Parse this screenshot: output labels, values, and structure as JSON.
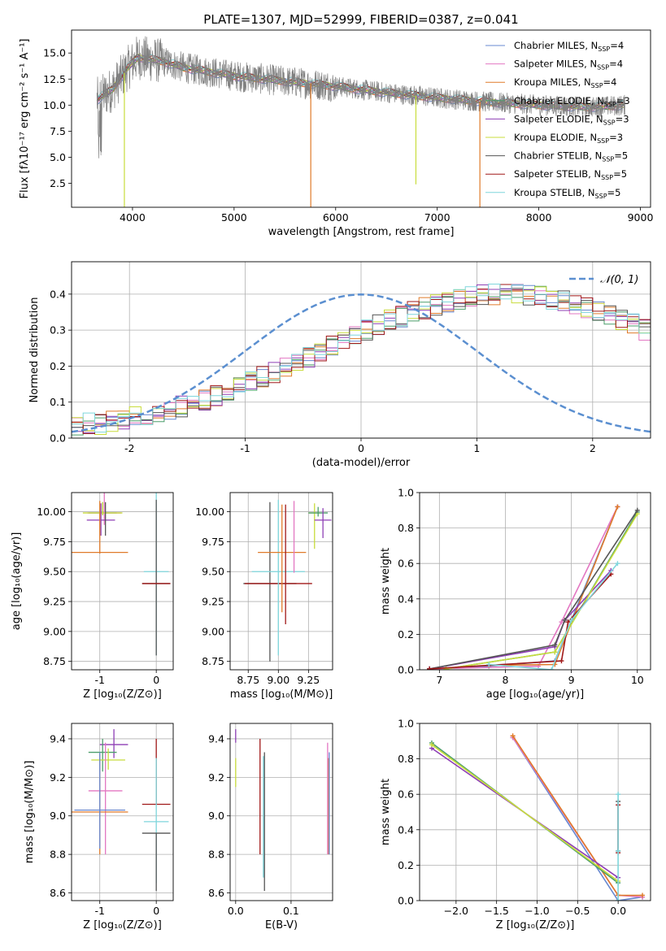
{
  "chart_data": [
    {
      "id": "spectrum",
      "type": "line",
      "title": "PLATE=1307, MJD=52999, FIBERID=0387, z=0.041",
      "xlabel": "wavelength [Angstrom, rest frame]",
      "ylabel": "Flux [fλ10⁻¹⁷ erg cm⁻² s⁻¹ A⁻¹]",
      "xlim": [
        3400,
        9100
      ],
      "ylim": [
        0.2,
        17.2
      ],
      "xticks": [
        4000,
        5000,
        6000,
        7000,
        8000,
        9000
      ],
      "yticks": [
        2.5,
        5.0,
        7.5,
        10.0,
        12.5,
        15.0
      ],
      "ytick_labels": [
        "2.5",
        "5.0",
        "7.5",
        "10.0",
        "12.5",
        "15.0"
      ],
      "legend_position": "top-right",
      "data_trace": {
        "color": "#808080",
        "wavelength_range": [
          3650,
          8850
        ]
      },
      "continuum": {
        "x": [
          3650,
          3800,
          3950,
          4050,
          4300,
          4500,
          5000,
          5500,
          6000,
          6500,
          7000,
          7500,
          8000,
          8500,
          8850
        ],
        "y": [
          10.5,
          11.5,
          13.5,
          14.6,
          14.2,
          13.6,
          12.8,
          12.3,
          11.8,
          11.2,
          10.7,
          10.3,
          10.0,
          9.8,
          10.0
        ]
      },
      "series": [
        {
          "name": "Chabrier MILES, N",
          "sub": "SSP",
          "suffix": "=4",
          "color": "#6788d0"
        },
        {
          "name": "Salpeter MILES, N",
          "sub": "SSP",
          "suffix": "=4",
          "color": "#e377c2"
        },
        {
          "name": "Kroupa MILES, N",
          "sub": "SSP",
          "suffix": "=4",
          "color": "#e07b2a"
        },
        {
          "name": "Chabrier ELODIE, N",
          "sub": "SSP",
          "suffix": "=3",
          "color": "#4c9e6b"
        },
        {
          "name": "Salpeter ELODIE, N",
          "sub": "SSP",
          "suffix": "=3",
          "color": "#8e3fb5"
        },
        {
          "name": "Kroupa ELODIE, N",
          "sub": "SSP",
          "suffix": "=3",
          "color": "#c8dc3c"
        },
        {
          "name": "Chabrier STELIB, N",
          "sub": "SSP",
          "suffix": "=5",
          "color": "#555555"
        },
        {
          "name": "Salpeter STELIB, N",
          "sub": "SSP",
          "suffix": "=5",
          "color": "#a01818"
        },
        {
          "name": "Kroupa STELIB, N",
          "sub": "SSP",
          "suffix": "=5",
          "color": "#7fd6dc"
        }
      ],
      "dips": [
        {
          "x": 3920,
          "color": "#c8dc3c",
          "to": 0.2
        },
        {
          "x": 5755,
          "color": "#e07b2a",
          "to": 0.2
        },
        {
          "x": 6790,
          "color": "#c8dc3c",
          "to": 2.4
        },
        {
          "x": 7420,
          "color": "#e07b2a",
          "to": 0.2
        }
      ]
    },
    {
      "id": "residuals",
      "type": "histogram",
      "xlabel": "(data-model)/error",
      "ylabel": "Normed distribution",
      "xlim": [
        -2.5,
        2.5
      ],
      "ylim": [
        0,
        0.49
      ],
      "xticks": [
        -2,
        -1,
        0,
        1,
        2
      ],
      "yticks": [
        0.0,
        0.1,
        0.2,
        0.3,
        0.4
      ],
      "ytick_labels": [
        "0.0",
        "0.1",
        "0.2",
        "0.3",
        "0.4"
      ],
      "grid": true,
      "legend": {
        "label": "𝒩(0, 1)",
        "position": "top-right",
        "color": "#5b8fd0"
      },
      "bin_width": 0.1,
      "bin_start": -2.5,
      "base_heights": [
        0.038,
        0.04,
        0.04,
        0.045,
        0.052,
        0.058,
        0.063,
        0.07,
        0.078,
        0.087,
        0.097,
        0.107,
        0.118,
        0.13,
        0.143,
        0.156,
        0.17,
        0.184,
        0.198,
        0.212,
        0.227,
        0.242,
        0.256,
        0.271,
        0.286,
        0.3,
        0.313,
        0.326,
        0.338,
        0.35,
        0.361,
        0.371,
        0.379,
        0.386,
        0.392,
        0.396,
        0.399,
        0.399,
        0.399,
        0.397,
        0.393,
        0.388,
        0.381,
        0.373,
        0.363,
        0.352,
        0.34,
        0.328,
        0.315,
        0.301,
        0.287,
        0.272,
        0.258,
        0.243,
        0.228,
        0.213,
        0.199,
        0.185,
        0.171,
        0.157,
        0.144,
        0.131,
        0.119,
        0.108,
        0.098,
        0.088,
        0.079,
        0.07,
        0.063,
        0.056,
        0.05,
        0.044,
        0.039,
        0.034,
        0.03,
        0.027,
        0.024,
        0.022,
        0.021,
        0.02
      ]
    },
    {
      "id": "age-z",
      "type": "errorbar",
      "xlabel": "Z [log₁₀(Z/Z⊙)]",
      "ylabel": "age  [log₁₀(age/yr)]",
      "xlim": [
        -1.5,
        0.3
      ],
      "ylim": [
        8.68,
        10.16
      ],
      "xticks": [
        -1,
        0
      ],
      "yticks": [
        8.75,
        9.0,
        9.25,
        9.5,
        9.75,
        10.0
      ],
      "ytick_labels": [
        "8.75",
        "9.00",
        "9.25",
        "9.50",
        "9.75",
        "10.00"
      ],
      "points": [
        {
          "x": -0.95,
          "xerr": 0.25,
          "y": 9.99,
          "yerr": [
            0.02,
            0.09
          ],
          "color": "#4c9e6b"
        },
        {
          "x": -0.92,
          "xerr": 0.3,
          "y": 9.99,
          "yerr": [
            0.1,
            0.55
          ],
          "color": "#e377c2"
        },
        {
          "x": -0.95,
          "xerr": 0.35,
          "y": 9.99,
          "yerr": [
            0.02,
            0.09
          ],
          "color": "#c8dc3c"
        },
        {
          "x": -0.98,
          "xerr": 0.25,
          "y": 9.93,
          "yerr": [
            0.13,
            0.14
          ],
          "color": "#8e3fb5"
        },
        {
          "x": -1.0,
          "xerr": 0.5,
          "y": 9.66,
          "yerr": [
            0.01,
            0.43
          ],
          "color": "#e07b2a"
        },
        {
          "x": 0.0,
          "xerr": 0.22,
          "y": 9.5,
          "yerr": [
            0.7,
            0.68
          ],
          "color": "#7fd6dc"
        },
        {
          "x": 0.0,
          "xerr": 0.25,
          "y": 9.4,
          "yerr": [
            0.6,
            0.7
          ],
          "color": "#555555"
        },
        {
          "x": 0.0,
          "xerr": 0.25,
          "y": 9.4,
          "yerr": [
            0.0,
            0.0
          ],
          "color": "#a01818"
        },
        {
          "x": -0.9,
          "xerr": 0.0,
          "y": 10.0,
          "yerr": [
            0.2,
            0.08
          ],
          "color": "#555555"
        }
      ]
    },
    {
      "id": "age-mass",
      "type": "errorbar",
      "xlabel": "mass [log₁₀(M/M⊙)]",
      "xlim": [
        8.6,
        9.45
      ],
      "ylim": [
        8.68,
        10.16
      ],
      "xticks": [
        8.75,
        9.0,
        9.25
      ],
      "xtick_labels": [
        "8.75",
        "9.00",
        "9.25"
      ],
      "yticks": [
        8.75,
        9.0,
        9.25,
        9.5,
        9.75,
        10.0
      ],
      "ytick_labels": [
        "8.75",
        "9.00",
        "9.25",
        "9.50",
        "9.75",
        "10.00"
      ],
      "points": [
        {
          "x": 8.93,
          "xerr": 0.22,
          "y": 9.4,
          "yerr": [
            0.65,
            0.68
          ],
          "color": "#555555"
        },
        {
          "x": 9.0,
          "xerr": 0.28,
          "y": 9.4,
          "yerr": [
            0.0,
            0.0
          ],
          "color": "#a01818"
        },
        {
          "x": 9.0,
          "xerr": 0.22,
          "y": 9.5,
          "yerr": [
            0.7,
            0.6
          ],
          "color": "#7fd6dc"
        },
        {
          "x": 9.03,
          "xerr": 0.2,
          "y": 9.66,
          "yerr": [
            0.5,
            0.4
          ],
          "color": "#e07b2a"
        },
        {
          "x": 9.06,
          "xerr": 0.0,
          "y": 9.66,
          "yerr": [
            0.6,
            0.4
          ],
          "color": "#a01818"
        },
        {
          "x": 9.13,
          "xerr": 0.0,
          "y": 9.99,
          "yerr": [
            0.5,
            0.1
          ],
          "color": "#e377c2"
        },
        {
          "x": 9.3,
          "xerr": 0.05,
          "y": 9.99,
          "yerr": [
            0.3,
            0.08
          ],
          "color": "#c8dc3c"
        },
        {
          "x": 9.33,
          "xerr": 0.08,
          "y": 9.99,
          "yerr": [
            0.03,
            0.05
          ],
          "color": "#4c9e6b"
        },
        {
          "x": 9.37,
          "xerr": 0.07,
          "y": 9.93,
          "yerr": [
            0.15,
            0.1
          ],
          "color": "#8e3fb5"
        }
      ]
    },
    {
      "id": "weight-age",
      "type": "line",
      "xlabel": "age  [log₁₀(age/yr)]",
      "ylabel": "mass weight",
      "xlim": [
        6.7,
        10.2
      ],
      "ylim": [
        0,
        1.0
      ],
      "xticks": [
        7,
        8,
        9,
        10
      ],
      "yticks": [
        0.0,
        0.2,
        0.4,
        0.6,
        0.8,
        1.0
      ],
      "ytick_labels": [
        "0.0",
        "0.2",
        "0.4",
        "0.6",
        "0.8",
        "1.0"
      ],
      "grid": true,
      "series": [
        {
          "color": "#6788d0",
          "x": [
            6.85,
            7.75,
            8.75,
            9.7
          ],
          "y": [
            0.005,
            0.02,
            0.05,
            0.92
          ]
        },
        {
          "color": "#e377c2",
          "x": [
            6.85,
            8.5,
            8.85,
            9.7
          ],
          "y": [
            0.005,
            0.02,
            0.27,
            0.92
          ]
        },
        {
          "color": "#e07b2a",
          "x": [
            7.75,
            8.75,
            9.7
          ],
          "y": [
            0.025,
            0.03,
            0.92
          ]
        },
        {
          "color": "#4c9e6b",
          "x": [
            7.1,
            8.75,
            10.0
          ],
          "y": [
            0.005,
            0.1,
            0.89
          ]
        },
        {
          "color": "#8e3fb5",
          "x": [
            6.85,
            8.75,
            8.9,
            9.6
          ],
          "y": [
            0.005,
            0.13,
            0.28,
            0.56
          ]
        },
        {
          "color": "#c8dc3c",
          "x": [
            7.1,
            8.75,
            10.0
          ],
          "y": [
            0.005,
            0.1,
            0.88
          ]
        },
        {
          "color": "#555555",
          "x": [
            6.85,
            8.75,
            8.9,
            10.0
          ],
          "y": [
            0.005,
            0.14,
            0.28,
            0.9
          ]
        },
        {
          "color": "#a01818",
          "x": [
            6.85,
            8.85,
            8.95,
            9.6
          ],
          "y": [
            0.005,
            0.05,
            0.27,
            0.54
          ]
        },
        {
          "color": "#7fd6dc",
          "x": [
            7.75,
            8.7,
            9.0,
            9.7
          ],
          "y": [
            0.03,
            0.0,
            0.28,
            0.6
          ]
        }
      ]
    },
    {
      "id": "mass-z",
      "type": "errorbar",
      "xlabel": "Z [log₁₀(Z/Z⊙)]",
      "ylabel": "mass [log₁₀(M/M⊙)]",
      "xlim": [
        -1.5,
        0.3
      ],
      "ylim": [
        8.56,
        9.48
      ],
      "xticks": [
        -1,
        0
      ],
      "yticks": [
        8.6,
        8.8,
        9.0,
        9.2,
        9.4
      ],
      "ytick_labels": [
        "8.6",
        "8.8",
        "9.0",
        "9.2",
        "9.4"
      ],
      "points": [
        {
          "x": -0.75,
          "xerr": 0.25,
          "y": 9.37,
          "yerr": [
            0.07,
            0.08
          ],
          "color": "#8e3fb5"
        },
        {
          "x": -0.95,
          "xerr": 0.25,
          "y": 9.33,
          "yerr": [
            0.1,
            0.07
          ],
          "color": "#4c9e6b"
        },
        {
          "x": -0.85,
          "xerr": 0.3,
          "y": 9.29,
          "yerr": [
            0.05,
            0.06
          ],
          "color": "#c8dc3c"
        },
        {
          "x": -0.9,
          "xerr": 0.3,
          "y": 9.13,
          "yerr": [
            0.33,
            0.25
          ],
          "color": "#e377c2"
        },
        {
          "x": -1.0,
          "xerr": 0.5,
          "y": 9.02,
          "yerr": [
            0.22,
            0.3
          ],
          "color": "#e07b2a"
        },
        {
          "x": -1.0,
          "xerr": 0.45,
          "y": 9.03,
          "yerr": [
            0.2,
            0.3
          ],
          "color": "#6788d0"
        },
        {
          "x": 0.0,
          "xerr": 0.25,
          "y": 9.06,
          "yerr": [
            0.0,
            0.34
          ],
          "color": "#a01818"
        },
        {
          "x": 0.0,
          "xerr": 0.22,
          "y": 8.97,
          "yerr": [
            0.32,
            0.33
          ],
          "color": "#7fd6dc"
        },
        {
          "x": 0.0,
          "xerr": 0.25,
          "y": 8.91,
          "yerr": [
            0.3,
            0.0
          ],
          "color": "#555555"
        }
      ]
    },
    {
      "id": "mass-ebv",
      "type": "errorbar",
      "xlabel": "E(B-V)",
      "xlim": [
        -0.01,
        0.175
      ],
      "ylim": [
        8.56,
        9.48
      ],
      "xticks": [
        0.0,
        0.1
      ],
      "xtick_labels": [
        "0.0",
        "0.1"
      ],
      "yticks": [
        8.6,
        8.8,
        9.0,
        9.2,
        9.4
      ],
      "ytick_labels": [
        "8.6",
        "8.8",
        "9.0",
        "9.2",
        "9.4"
      ],
      "points": [
        {
          "x": 0.0,
          "y": 9.4,
          "yerr": [
            0.02,
            0.05
          ],
          "color": "#8e3fb5"
        },
        {
          "x": 0.0,
          "y": 9.2,
          "yerr": [
            0.05,
            0.1
          ],
          "color": "#c8dc3c"
        },
        {
          "x": 0.044,
          "y": 9.1,
          "yerr": [
            0.3,
            0.3
          ],
          "color": "#a01818"
        },
        {
          "x": 0.05,
          "y": 9.0,
          "yerr": [
            0.32,
            0.31
          ],
          "color": "#7fd6dc"
        },
        {
          "x": 0.052,
          "y": 8.97,
          "yerr": [
            0.36,
            0.36
          ],
          "color": "#555555"
        },
        {
          "x": 0.166,
          "y": 9.1,
          "yerr": [
            0.3,
            0.28
          ],
          "color": "#e377c2"
        },
        {
          "x": 0.168,
          "y": 9.0,
          "yerr": [
            0.2,
            0.3
          ],
          "color": "#e07b2a"
        },
        {
          "x": 0.169,
          "y": 9.05,
          "yerr": [
            0.25,
            0.28
          ],
          "color": "#6788d0"
        }
      ]
    },
    {
      "id": "weight-z",
      "type": "line",
      "xlabel": "Z [log₁₀(Z/Z⊙)]",
      "ylabel": "mass weight",
      "xlim": [
        -2.45,
        0.4
      ],
      "ylim": [
        0,
        1.0
      ],
      "xticks": [
        -2.0,
        -1.5,
        -1.0,
        -0.5,
        0.0
      ],
      "xtick_labels": [
        "−2.0",
        "−1.5",
        "−1.0",
        "−0.5",
        "0.0"
      ],
      "yticks": [
        0.0,
        0.2,
        0.4,
        0.6,
        0.8,
        1.0
      ],
      "ytick_labels": [
        "0.0",
        "0.2",
        "0.4",
        "0.6",
        "0.8",
        "1.0"
      ],
      "grid": true,
      "series": [
        {
          "color": "#6788d0",
          "x": [
            -1.3,
            0.0,
            0.3
          ],
          "y": [
            0.92,
            0.0,
            0.02
          ]
        },
        {
          "color": "#e377c2",
          "x": [
            -1.3,
            0.0,
            0.3
          ],
          "y": [
            0.92,
            0.03,
            0.02
          ]
        },
        {
          "color": "#e07b2a",
          "x": [
            -1.3,
            0.0,
            0.3
          ],
          "y": [
            0.93,
            0.03,
            0.03
          ]
        },
        {
          "color": "#4c9e6b",
          "x": [
            -2.3,
            0.0
          ],
          "y": [
            0.89,
            0.1
          ]
        },
        {
          "color": "#8e3fb5",
          "x": [
            -2.3,
            0.0
          ],
          "y": [
            0.86,
            0.13
          ]
        },
        {
          "color": "#c8dc3c",
          "x": [
            -2.3,
            0.0
          ],
          "y": [
            0.88,
            0.11
          ]
        },
        {
          "color": "#555555",
          "x": [
            0.0,
            0.0
          ],
          "y": [
            0.56,
            0.28
          ]
        },
        {
          "color": "#a01818",
          "x": [
            0.0,
            0.0
          ],
          "y": [
            0.54,
            0.27
          ]
        },
        {
          "color": "#7fd6dc",
          "x": [
            0.0,
            0.0,
            0.0
          ],
          "y": [
            0.6,
            0.28,
            0.0
          ]
        }
      ]
    }
  ]
}
